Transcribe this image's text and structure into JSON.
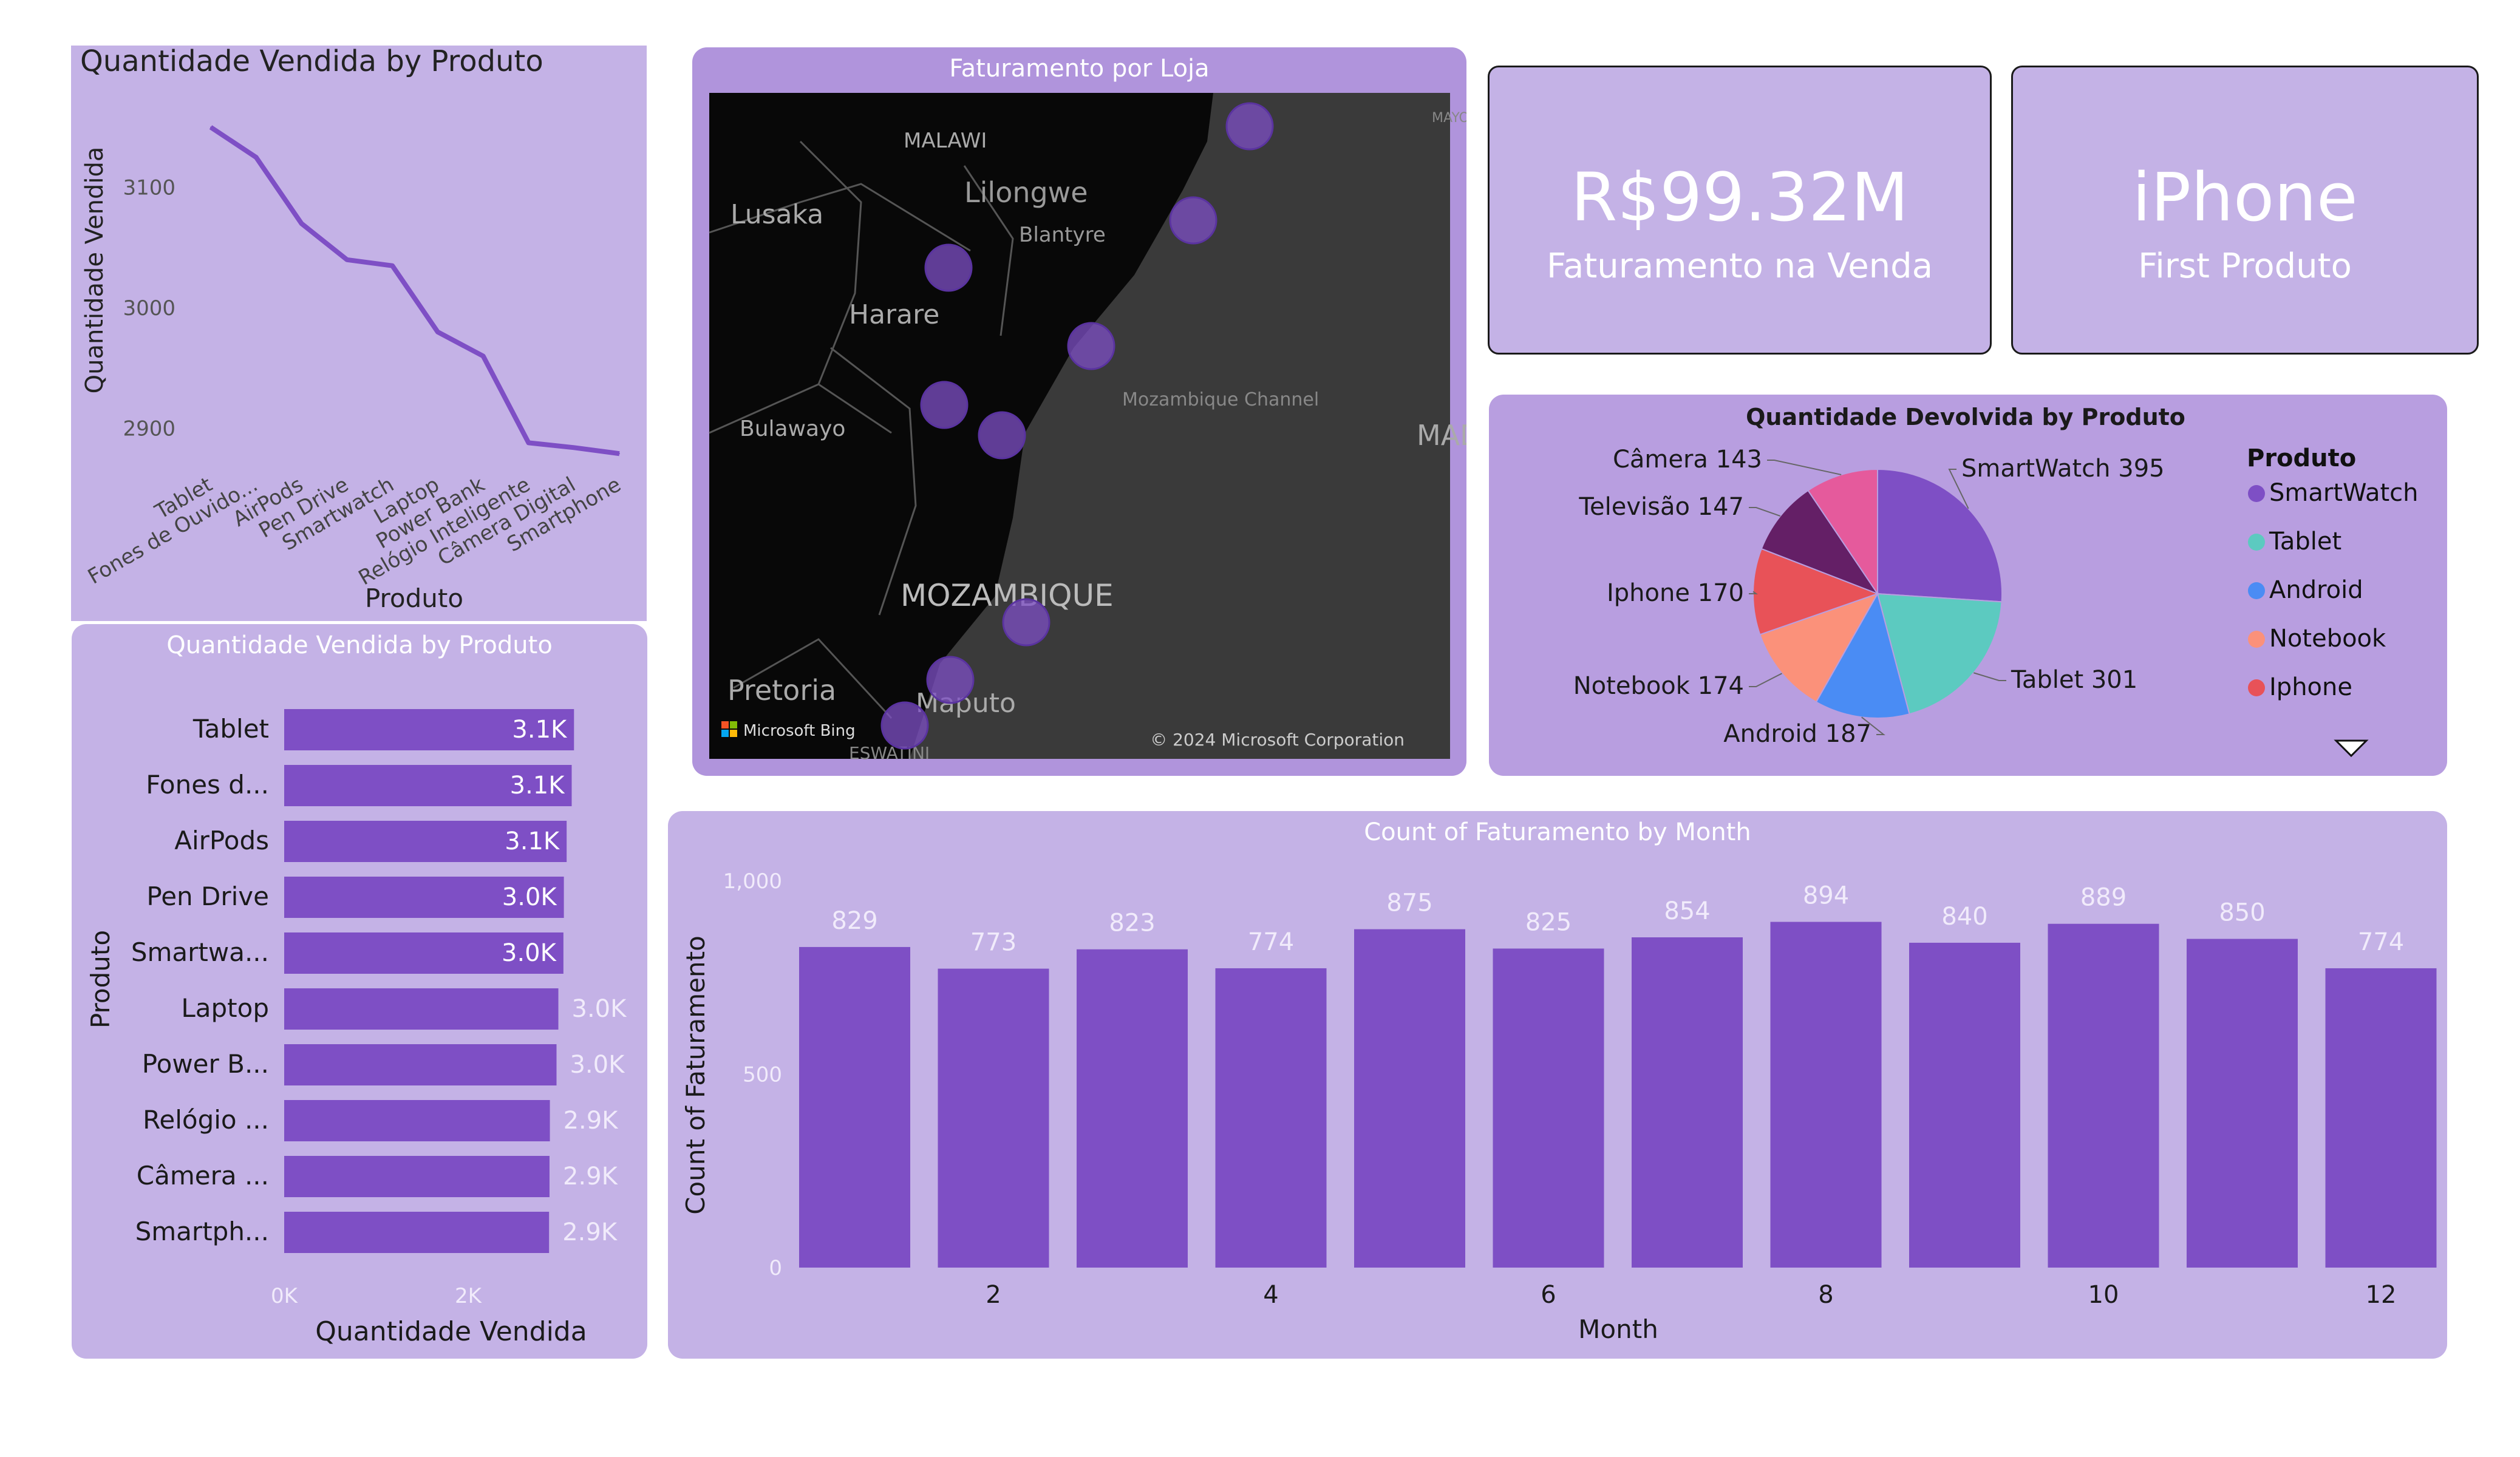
{
  "line_chart": {
    "title": "Quantidade Vendida by Produto",
    "xlabel": "Produto",
    "ylabel": "Quantidade Vendida",
    "color": "#7e4fc5"
  },
  "map": {
    "title": "Faturamento por Loja",
    "labels": [
      "MALAWI",
      "Lilongwe",
      "Lusaka",
      "Blantyre",
      "Harare",
      "Bulawayo",
      "Mozambique Channel",
      "MAD",
      "MOZAMBIQUE",
      "Pretoria",
      "Maputo",
      "ESWATINI",
      "MAYO"
    ],
    "bing": "Microsoft Bing",
    "copyright": "© 2024 Microsoft Corporation"
  },
  "kpis": [
    {
      "value": "R$99.32M",
      "label": "Faturamento na Venda"
    },
    {
      "value": "iPhone",
      "label": "First Produto"
    }
  ],
  "pie": {
    "title": "Quantidade Devolvida by Produto",
    "legend_title": "Produto",
    "legend": [
      "SmartWatch",
      "Tablet",
      "Android",
      "Notebook",
      "Iphone"
    ],
    "labels": [
      "SmartWatch 395",
      "Tablet 301",
      "Android 187",
      "Notebook 174",
      "Iphone 170",
      "Televisão 147",
      "Câmera 143"
    ]
  },
  "hbar": {
    "title": "Quantidade Vendida by Produto",
    "xlabel": "Quantidade Vendida",
    "ylabel": "Produto",
    "labels": [
      "Tablet",
      "Fones d...",
      "AirPods",
      "Pen Drive",
      "Smartwa...",
      "Laptop",
      "Power B...",
      "Relógio ...",
      "Câmera ...",
      "Smartph..."
    ],
    "value_labels": [
      "3.1K",
      "3.1K",
      "3.1K",
      "3.0K",
      "3.0K",
      "3.0K",
      "3.0K",
      "2.9K",
      "2.9K",
      "2.9K"
    ],
    "ticks": [
      "0K",
      "2K"
    ]
  },
  "vbar": {
    "title": "Count of Faturamento by Month",
    "xlabel": "Month",
    "ylabel": "Count of Faturamento",
    "yticks": [
      "0",
      "500",
      "1,000"
    ],
    "xticks": [
      "2",
      "4",
      "6",
      "8",
      "10",
      "12"
    ]
  },
  "chart_data": [
    {
      "type": "line",
      "title": "Quantidade Vendida by Produto",
      "xlabel": "Produto",
      "ylabel": "Quantidade Vendida",
      "categories": [
        "Tablet",
        "Fones de Ouvido...",
        "AirPods",
        "Pen Drive",
        "Smartwatch",
        "Laptop",
        "Power Bank",
        "Relógio Inteligente",
        "Câmera Digital",
        "Smartphone"
      ],
      "values": [
        3150,
        3125,
        3070,
        3040,
        3035,
        2980,
        2960,
        2888,
        2884,
        2879
      ],
      "yticks": [
        2900,
        3000,
        3100
      ],
      "ylim": [
        2865,
        3180
      ]
    },
    {
      "type": "pie",
      "title": "Quantidade Devolvida by Produto",
      "categories": [
        "SmartWatch",
        "Tablet",
        "Android",
        "Notebook",
        "Iphone",
        "Televisão",
        "Câmera"
      ],
      "values": [
        395,
        301,
        187,
        174,
        170,
        147,
        143
      ],
      "colors": [
        "#7e4fc5",
        "#5ccac0",
        "#4a8cf4",
        "#fb917a",
        "#e85258",
        "#641f66",
        "#e55a9c"
      ],
      "legend": "right"
    },
    {
      "type": "bar",
      "orientation": "horizontal",
      "title": "Quantidade Vendida by Produto",
      "xlabel": "Quantidade Vendida",
      "ylabel": "Produto",
      "categories": [
        "Tablet",
        "Fones de Ouvido",
        "AirPods",
        "Pen Drive",
        "Smartwatch",
        "Laptop",
        "Power Bank",
        "Relógio Inteligente",
        "Câmera Digital",
        "Smartphone"
      ],
      "values": [
        3150,
        3125,
        3070,
        3040,
        3035,
        2980,
        2960,
        2888,
        2884,
        2879
      ],
      "xlim": [
        0,
        3300
      ]
    },
    {
      "type": "bar",
      "title": "Count of Faturamento by Month",
      "xlabel": "Month",
      "ylabel": "Count of Faturamento",
      "categories": [
        1,
        2,
        3,
        4,
        5,
        6,
        7,
        8,
        9,
        10,
        11,
        12
      ],
      "values": [
        829,
        773,
        823,
        774,
        875,
        825,
        854,
        894,
        840,
        889,
        850,
        774
      ],
      "ylim": [
        0,
        1000
      ]
    }
  ]
}
